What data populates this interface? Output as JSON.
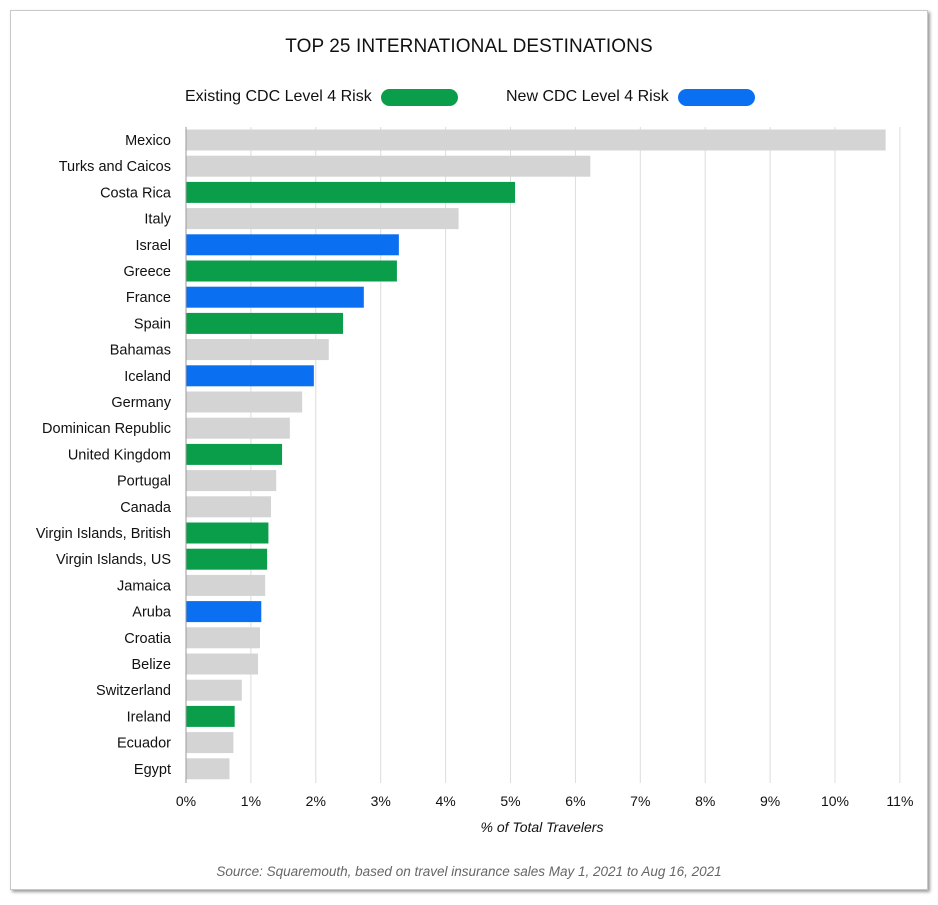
{
  "chart_data": {
    "type": "bar",
    "orientation": "horizontal",
    "title": "TOP 25 INTERNATIONAL DESTINATIONS",
    "xlabel": "% of Total Travelers",
    "ylabel": "",
    "xlim": [
      0,
      11
    ],
    "xticks": [
      "0%",
      "1%",
      "2%",
      "3%",
      "4%",
      "5%",
      "6%",
      "7%",
      "8%",
      "9%",
      "10%",
      "11%"
    ],
    "grid": "vertical",
    "legend_position": "top",
    "legend": [
      {
        "label": "Existing CDC Level 4 Risk",
        "color": "#0a9e4b",
        "key": "existing"
      },
      {
        "label": "New CDC Level 4 Risk",
        "color": "#0a6ff0",
        "key": "new"
      }
    ],
    "default_color": "#d4d4d4",
    "categories": [
      "Mexico",
      "Turks and Caicos",
      "Costa Rica",
      "Italy",
      "Israel",
      "Greece",
      "France",
      "Spain",
      "Bahamas",
      "Iceland",
      "Germany",
      "Dominican Republic",
      "United Kingdom",
      "Portugal",
      "Canada",
      "Virgin Islands, British",
      "Virgin Islands, US",
      "Jamaica",
      "Aruba",
      "Croatia",
      "Belize",
      "Switzerland",
      "Ireland",
      "Ecuador",
      "Egypt"
    ],
    "values": [
      10.78,
      6.23,
      5.07,
      4.2,
      3.28,
      3.25,
      2.74,
      2.42,
      2.2,
      1.97,
      1.79,
      1.6,
      1.48,
      1.39,
      1.31,
      1.27,
      1.25,
      1.22,
      1.16,
      1.14,
      1.11,
      0.86,
      0.75,
      0.73,
      0.67
    ],
    "risk": [
      "none",
      "none",
      "existing",
      "none",
      "new",
      "existing",
      "new",
      "existing",
      "none",
      "new",
      "none",
      "none",
      "existing",
      "none",
      "none",
      "existing",
      "existing",
      "none",
      "new",
      "none",
      "none",
      "none",
      "existing",
      "none",
      "none"
    ]
  },
  "source": "Source: Squaremouth, based on travel insurance sales May 1, 2021 to Aug 16, 2021"
}
